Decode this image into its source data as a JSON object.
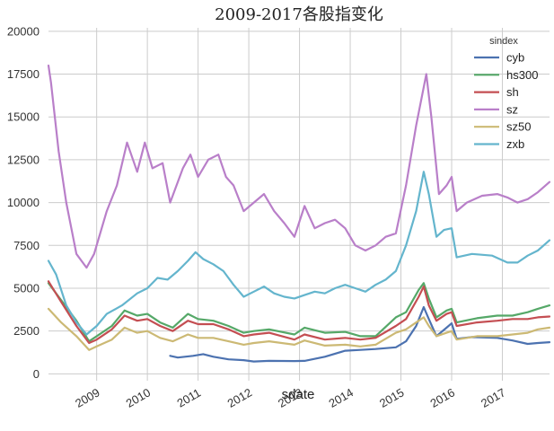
{
  "chart_data": {
    "type": "line",
    "title": "2009-2017各股指变化",
    "xlabel": "sdate",
    "ylabel": "",
    "xlim": [
      2008.05,
      2017.93
    ],
    "ylim": [
      -400,
      20200
    ],
    "grid": true,
    "legend_title": "sindex",
    "legend_position": "top-right",
    "x_ticks": [
      {
        "label": "2009",
        "value": 2009
      },
      {
        "label": "2010",
        "value": 2010
      },
      {
        "label": "2011",
        "value": 2011
      },
      {
        "label": "2012",
        "value": 2012
      },
      {
        "label": "2013",
        "value": 2013
      },
      {
        "label": "2014",
        "value": 2014
      },
      {
        "label": "2015",
        "value": 2015
      },
      {
        "label": "2016",
        "value": 2016
      },
      {
        "label": "2017",
        "value": 2017
      }
    ],
    "y_ticks": [
      0,
      2500,
      5000,
      7500,
      10000,
      12500,
      15000,
      17500,
      20000
    ],
    "series": [
      {
        "name": "cyb",
        "color": "#4c72b0",
        "x": [
          2010.45,
          2010.6,
          2010.9,
          2011.1,
          2011.3,
          2011.6,
          2011.9,
          2012.1,
          2012.4,
          2012.9,
          2013.1,
          2013.5,
          2013.9,
          2014.2,
          2014.5,
          2014.9,
          2015.1,
          2015.3,
          2015.45,
          2015.55,
          2015.7,
          2015.9,
          2016.0,
          2016.1,
          2016.4,
          2016.9,
          2017.2,
          2017.5,
          2017.7,
          2017.93
        ],
        "y": [
          1050,
          950,
          1050,
          1150,
          1000,
          850,
          800,
          720,
          760,
          750,
          760,
          1000,
          1350,
          1400,
          1450,
          1550,
          1900,
          2800,
          3900,
          3200,
          2200,
          2700,
          2950,
          2050,
          2150,
          2100,
          1950,
          1750,
          1800,
          1850
        ]
      },
      {
        "name": "hs300",
        "color": "#55a868",
        "x": [
          2008.05,
          2008.3,
          2008.6,
          2008.85,
          2009.0,
          2009.3,
          2009.55,
          2009.8,
          2010.0,
          2010.25,
          2010.5,
          2010.8,
          2011.0,
          2011.3,
          2011.6,
          2011.9,
          2012.1,
          2012.4,
          2012.9,
          2013.1,
          2013.5,
          2013.9,
          2014.2,
          2014.5,
          2014.9,
          2015.1,
          2015.35,
          2015.45,
          2015.55,
          2015.7,
          2015.9,
          2016.0,
          2016.1,
          2016.5,
          2016.9,
          2017.2,
          2017.5,
          2017.7,
          2017.93
        ],
        "y": [
          5300,
          4300,
          3100,
          1900,
          2200,
          2800,
          3700,
          3400,
          3500,
          3000,
          2700,
          3500,
          3200,
          3100,
          2800,
          2400,
          2500,
          2600,
          2300,
          2700,
          2400,
          2450,
          2200,
          2200,
          3300,
          3600,
          4900,
          5300,
          4400,
          3300,
          3700,
          3800,
          3000,
          3250,
          3400,
          3400,
          3600,
          3800,
          4000
        ]
      },
      {
        "name": "sh",
        "color": "#c44e52",
        "x": [
          2008.05,
          2008.3,
          2008.6,
          2008.85,
          2009.0,
          2009.3,
          2009.55,
          2009.8,
          2010.0,
          2010.25,
          2010.5,
          2010.8,
          2011.0,
          2011.3,
          2011.6,
          2011.9,
          2012.1,
          2012.4,
          2012.9,
          2013.1,
          2013.5,
          2013.9,
          2014.2,
          2014.5,
          2014.9,
          2015.1,
          2015.35,
          2015.45,
          2015.55,
          2015.7,
          2015.9,
          2016.0,
          2016.1,
          2016.5,
          2016.9,
          2017.2,
          2017.5,
          2017.7,
          2017.93
        ],
        "y": [
          5400,
          4200,
          2800,
          1800,
          2000,
          2600,
          3400,
          3100,
          3200,
          2800,
          2500,
          3100,
          2900,
          2900,
          2600,
          2200,
          2300,
          2400,
          2000,
          2300,
          2000,
          2100,
          2000,
          2100,
          2800,
          3200,
          4500,
          5100,
          4000,
          3100,
          3500,
          3600,
          2800,
          3000,
          3100,
          3200,
          3200,
          3300,
          3350
        ]
      },
      {
        "name": "sz",
        "color": "#b97fc9",
        "x": [
          2008.05,
          2008.1,
          2008.25,
          2008.4,
          2008.6,
          2008.8,
          2008.95,
          2009.2,
          2009.4,
          2009.6,
          2009.8,
          2009.95,
          2010.1,
          2010.3,
          2010.45,
          2010.7,
          2010.85,
          2011.0,
          2011.2,
          2011.4,
          2011.55,
          2011.7,
          2011.9,
          2012.1,
          2012.3,
          2012.5,
          2012.7,
          2012.9,
          2013.1,
          2013.3,
          2013.5,
          2013.7,
          2013.9,
          2014.1,
          2014.3,
          2014.5,
          2014.7,
          2014.9,
          2015.1,
          2015.3,
          2015.5,
          2015.6,
          2015.75,
          2015.9,
          2016.0,
          2016.1,
          2016.3,
          2016.6,
          2016.9,
          2017.1,
          2017.3,
          2017.5,
          2017.7,
          2017.93
        ],
        "y": [
          18000,
          17000,
          13000,
          10000,
          7000,
          6200,
          7000,
          9500,
          11000,
          13500,
          11800,
          13500,
          12000,
          12300,
          10000,
          12000,
          12800,
          11500,
          12500,
          12800,
          11500,
          11000,
          9500,
          10000,
          10500,
          9500,
          8800,
          8000,
          9800,
          8500,
          8800,
          9000,
          8500,
          7500,
          7200,
          7500,
          8000,
          8200,
          11000,
          14500,
          17500,
          15000,
          10500,
          11000,
          11500,
          9500,
          10000,
          10400,
          10500,
          10300,
          10000,
          10200,
          10600,
          11200
        ]
      },
      {
        "name": "sz50",
        "color": "#ccb974",
        "x": [
          2008.05,
          2008.3,
          2008.6,
          2008.85,
          2009.0,
          2009.3,
          2009.55,
          2009.8,
          2010.0,
          2010.25,
          2010.5,
          2010.8,
          2011.0,
          2011.3,
          2011.6,
          2011.9,
          2012.1,
          2012.4,
          2012.9,
          2013.1,
          2013.5,
          2013.9,
          2014.2,
          2014.5,
          2014.9,
          2015.1,
          2015.35,
          2015.45,
          2015.55,
          2015.7,
          2015.9,
          2016.0,
          2016.1,
          2016.5,
          2016.9,
          2017.2,
          2017.5,
          2017.7,
          2017.93
        ],
        "y": [
          3800,
          3000,
          2200,
          1400,
          1600,
          2000,
          2700,
          2400,
          2500,
          2100,
          1900,
          2300,
          2100,
          2100,
          1900,
          1700,
          1800,
          1900,
          1700,
          1950,
          1650,
          1700,
          1600,
          1700,
          2400,
          2600,
          3100,
          3300,
          2800,
          2200,
          2400,
          2500,
          2000,
          2200,
          2200,
          2300,
          2400,
          2600,
          2700
        ]
      },
      {
        "name": "zxb",
        "color": "#64b5cd",
        "x": [
          2008.05,
          2008.2,
          2008.4,
          2008.6,
          2008.8,
          2009.0,
          2009.2,
          2009.5,
          2009.8,
          2010.0,
          2010.2,
          2010.4,
          2010.6,
          2010.8,
          2010.95,
          2011.1,
          2011.3,
          2011.5,
          2011.7,
          2011.9,
          2012.1,
          2012.3,
          2012.5,
          2012.7,
          2012.9,
          2013.1,
          2013.3,
          2013.5,
          2013.7,
          2013.9,
          2014.1,
          2014.3,
          2014.5,
          2014.7,
          2014.9,
          2015.1,
          2015.3,
          2015.45,
          2015.55,
          2015.7,
          2015.85,
          2016.0,
          2016.1,
          2016.4,
          2016.8,
          2017.1,
          2017.3,
          2017.5,
          2017.7,
          2017.93
        ],
        "y": [
          6600,
          5800,
          4000,
          3000,
          2300,
          2800,
          3500,
          4000,
          4700,
          5000,
          5600,
          5500,
          6000,
          6600,
          7100,
          6700,
          6400,
          6000,
          5200,
          4500,
          4800,
          5100,
          4700,
          4500,
          4400,
          4600,
          4800,
          4700,
          5000,
          5200,
          5000,
          4800,
          5200,
          5500,
          6000,
          7500,
          9500,
          11800,
          10500,
          8000,
          8400,
          8500,
          6800,
          7000,
          6900,
          6500,
          6500,
          6900,
          7200,
          7800
        ]
      }
    ]
  }
}
